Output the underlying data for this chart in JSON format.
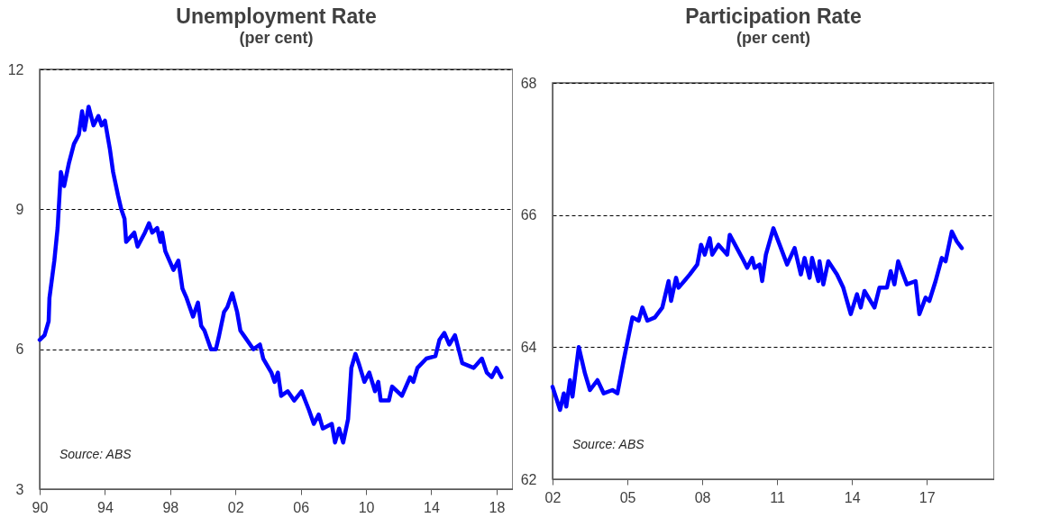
{
  "chart_data": [
    {
      "type": "line",
      "title": "Unemployment Rate",
      "subtitle": "(per cent)",
      "x": [
        1990.0,
        1990.3,
        1990.55,
        1990.6,
        1990.9,
        1991.1,
        1991.3,
        1991.5,
        1991.8,
        1992.1,
        1992.4,
        1992.6,
        1992.75,
        1993.0,
        1993.3,
        1993.6,
        1993.8,
        1994.0,
        1994.3,
        1994.5,
        1994.8,
        1995.0,
        1995.2,
        1995.3,
        1995.8,
        1996.0,
        1996.45,
        1996.7,
        1996.9,
        1997.2,
        1997.4,
        1997.5,
        1997.7,
        1998.2,
        1998.5,
        1998.75,
        1999.0,
        1999.4,
        1999.7,
        1999.9,
        2000.1,
        2000.5,
        2000.8,
        2001.0,
        2001.3,
        2001.5,
        2001.8,
        2002.1,
        2002.3,
        2002.5,
        2003.1,
        2003.5,
        2003.7,
        2004.2,
        2004.4,
        2004.6,
        2004.8,
        2005.2,
        2005.6,
        2006.05,
        2006.5,
        2006.8,
        2007.1,
        2007.35,
        2007.9,
        2008.1,
        2008.35,
        2008.6,
        2008.9,
        2009.1,
        2009.35,
        2009.55,
        2009.9,
        2010.2,
        2010.55,
        2010.75,
        2010.9,
        2011.4,
        2011.6,
        2012.2,
        2012.7,
        2012.9,
        2013.15,
        2013.7,
        2014.25,
        2014.5,
        2014.8,
        2015.1,
        2015.45,
        2015.9,
        2016.6,
        2017.1,
        2017.4,
        2017.7,
        2018.0,
        2018.3
      ],
      "series": [
        {
          "color": "#0000ff",
          "values": [
            6.2,
            6.3,
            6.6,
            7.1,
            7.9,
            8.6,
            9.8,
            9.5,
            10.0,
            10.4,
            10.6,
            11.1,
            10.7,
            11.2,
            10.8,
            11.0,
            10.8,
            10.9,
            10.3,
            9.8,
            9.3,
            9.0,
            8.8,
            8.3,
            8.5,
            8.2,
            8.5,
            8.7,
            8.5,
            8.6,
            8.3,
            8.5,
            8.1,
            7.7,
            7.9,
            7.3,
            7.1,
            6.7,
            7.0,
            6.5,
            6.4,
            6.0,
            6.0,
            6.3,
            6.8,
            6.9,
            7.2,
            6.8,
            6.4,
            6.3,
            6.0,
            6.1,
            5.8,
            5.5,
            5.3,
            5.5,
            5.0,
            5.1,
            4.9,
            5.1,
            4.7,
            4.4,
            4.6,
            4.3,
            4.4,
            4.0,
            4.3,
            4.0,
            4.5,
            5.6,
            5.9,
            5.7,
            5.3,
            5.5,
            5.1,
            5.3,
            4.9,
            4.9,
            5.2,
            5.0,
            5.4,
            5.3,
            5.6,
            5.8,
            5.85,
            6.2,
            6.35,
            6.1,
            6.3,
            5.7,
            5.6,
            5.8,
            5.5,
            5.4,
            5.6,
            5.4
          ]
        }
      ],
      "xlim": [
        1990,
        2019
      ],
      "xticks": [
        {
          "value": 1990,
          "label": "90"
        },
        {
          "value": 1994,
          "label": "94"
        },
        {
          "value": 1998,
          "label": "98"
        },
        {
          "value": 2002,
          "label": "02"
        },
        {
          "value": 2006,
          "label": "06"
        },
        {
          "value": 2010,
          "label": "10"
        },
        {
          "value": 2014,
          "label": "14"
        },
        {
          "value": 2018,
          "label": "18"
        }
      ],
      "ylim": [
        3,
        12
      ],
      "yticks": [
        3,
        6,
        9,
        12
      ],
      "grid": "y",
      "annotations": [
        "Source: ABS"
      ]
    },
    {
      "type": "line",
      "title": "Participation  Rate",
      "subtitle": "(per cent)",
      "x": [
        2002.0,
        2002.3,
        2002.45,
        2002.55,
        2002.7,
        2002.8,
        2003.05,
        2003.3,
        2003.5,
        2003.8,
        2004.05,
        2004.4,
        2004.6,
        2004.85,
        2005.2,
        2005.45,
        2005.6,
        2005.8,
        2006.1,
        2006.4,
        2006.65,
        2006.75,
        2006.95,
        2007.05,
        2007.5,
        2007.8,
        2007.95,
        2008.1,
        2008.3,
        2008.4,
        2008.65,
        2009.0,
        2009.1,
        2009.6,
        2009.8,
        2010.0,
        2010.1,
        2010.3,
        2010.4,
        2010.55,
        2010.85,
        2011.1,
        2011.4,
        2011.7,
        2011.95,
        2012.1,
        2012.3,
        2012.4,
        2012.65,
        2012.7,
        2012.85,
        2013.05,
        2013.4,
        2013.65,
        2013.95,
        2014.2,
        2014.35,
        2014.5,
        2014.9,
        2015.1,
        2015.4,
        2015.55,
        2015.7,
        2015.85,
        2016.2,
        2016.55,
        2016.7,
        2016.95,
        2017.1,
        2017.35,
        2017.6,
        2017.75,
        2018.0,
        2018.2,
        2018.4
      ],
      "series": [
        {
          "color": "#0000ff",
          "values": [
            63.4,
            63.05,
            63.3,
            63.1,
            63.5,
            63.25,
            64.0,
            63.6,
            63.35,
            63.5,
            63.3,
            63.35,
            63.3,
            63.8,
            64.45,
            64.4,
            64.6,
            64.4,
            64.45,
            64.6,
            65.0,
            64.7,
            65.05,
            64.9,
            65.1,
            65.25,
            65.55,
            65.4,
            65.65,
            65.4,
            65.55,
            65.4,
            65.7,
            65.35,
            65.2,
            65.35,
            65.2,
            65.25,
            65.0,
            65.4,
            65.8,
            65.55,
            65.25,
            65.5,
            65.1,
            65.35,
            65.05,
            65.35,
            65.0,
            65.3,
            64.95,
            65.3,
            65.1,
            64.9,
            64.5,
            64.8,
            64.6,
            64.85,
            64.6,
            64.9,
            64.9,
            65.15,
            64.95,
            65.3,
            64.95,
            65.0,
            64.5,
            64.75,
            64.7,
            65.0,
            65.35,
            65.3,
            65.75,
            65.6,
            65.5
          ]
        }
      ],
      "xlim": [
        2002,
        2019.7
      ],
      "xticks": [
        {
          "value": 2002,
          "label": "02"
        },
        {
          "value": 2005,
          "label": "05"
        },
        {
          "value": 2008,
          "label": "08"
        },
        {
          "value": 2011,
          "label": "11"
        },
        {
          "value": 2014,
          "label": "14"
        },
        {
          "value": 2017,
          "label": "17"
        }
      ],
      "ylim": [
        62,
        68
      ],
      "yticks": [
        62,
        64,
        66,
        68
      ],
      "grid": "y",
      "annotations": [
        "Source: ABS"
      ]
    }
  ]
}
